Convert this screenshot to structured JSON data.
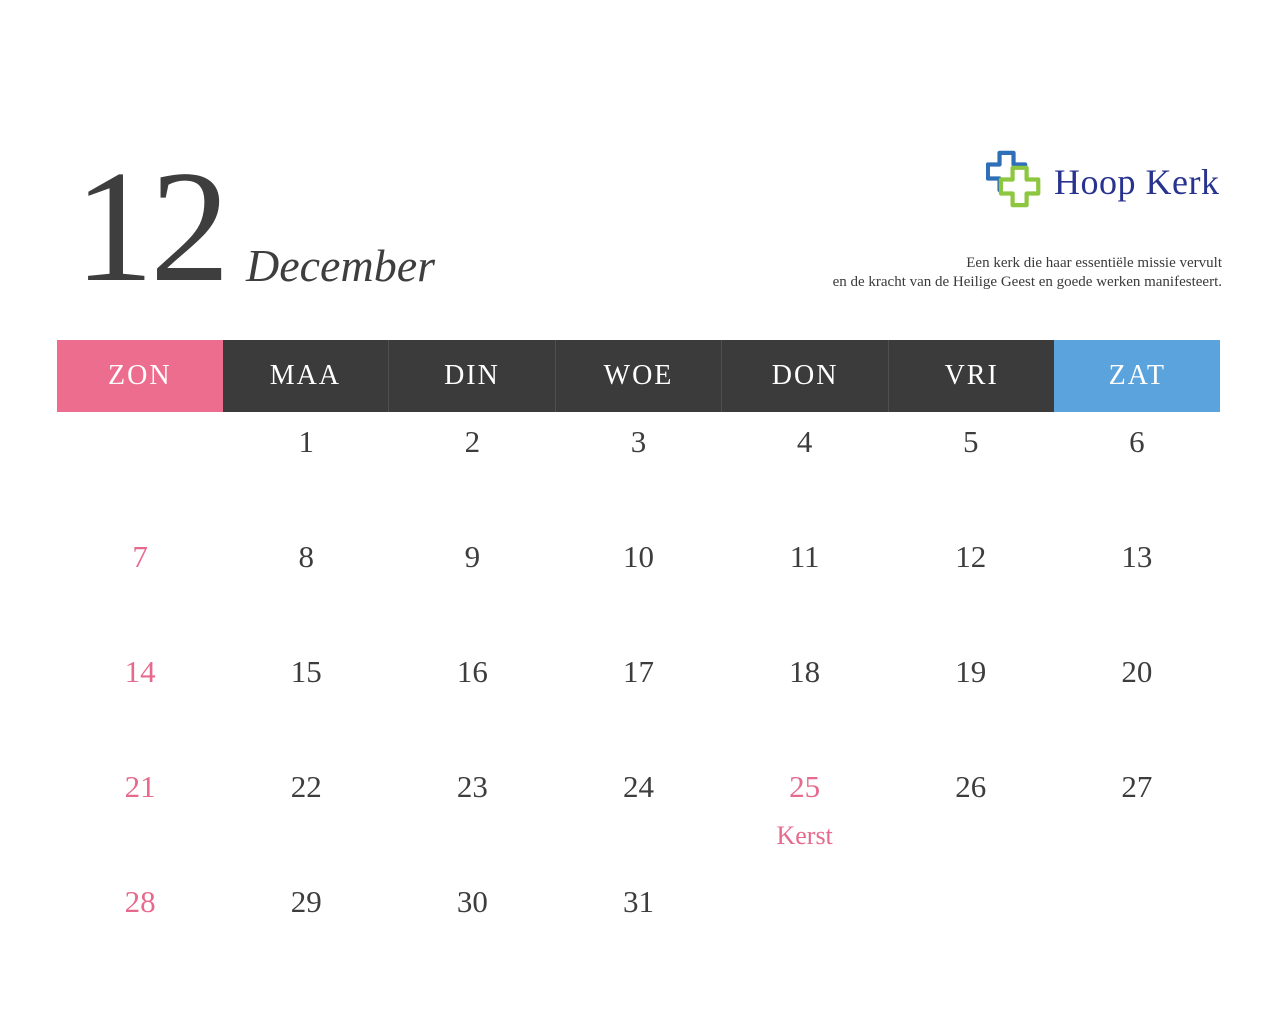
{
  "month": {
    "number": "12",
    "name": "December"
  },
  "brand": {
    "name": "Hoop Kerk",
    "tagline_lines": [
      "Een kerk die haar essentiële missie vervult",
      "en de kracht van de Heilige Geest en goede werken manifesteert."
    ],
    "colors": {
      "text": "#283390",
      "cross_blue": "#2e6fb7",
      "cross_green": "#8dc63f"
    }
  },
  "calendar": {
    "weekday_text_color": "#ffffff",
    "weekdays": [
      {
        "label": "ZON",
        "bg": "#ec6d8e"
      },
      {
        "label": "MAA",
        "bg": "#3b3b3b"
      },
      {
        "label": "DIN",
        "bg": "#3b3b3b"
      },
      {
        "label": "WOE",
        "bg": "#3b3b3b"
      },
      {
        "label": "DON",
        "bg": "#3b3b3b"
      },
      {
        "label": "VRI",
        "bg": "#3b3b3b"
      },
      {
        "label": "ZAT",
        "bg": "#5ba3dc"
      }
    ],
    "day_color_default": "#3d3d3d",
    "day_color_accent": "#e76a8e",
    "weeks": [
      [
        {
          "day": ""
        },
        {
          "day": "1"
        },
        {
          "day": "2"
        },
        {
          "day": "3"
        },
        {
          "day": "4"
        },
        {
          "day": "5"
        },
        {
          "day": "6"
        }
      ],
      [
        {
          "day": "7",
          "accent": true
        },
        {
          "day": "8"
        },
        {
          "day": "9"
        },
        {
          "day": "10"
        },
        {
          "day": "11"
        },
        {
          "day": "12"
        },
        {
          "day": "13"
        }
      ],
      [
        {
          "day": "14",
          "accent": true
        },
        {
          "day": "15"
        },
        {
          "day": "16"
        },
        {
          "day": "17"
        },
        {
          "day": "18"
        },
        {
          "day": "19"
        },
        {
          "day": "20"
        }
      ],
      [
        {
          "day": "21",
          "accent": true
        },
        {
          "day": "22"
        },
        {
          "day": "23"
        },
        {
          "day": "24"
        },
        {
          "day": "25",
          "accent": true,
          "note": "Kerst"
        },
        {
          "day": "26"
        },
        {
          "day": "27"
        }
      ],
      [
        {
          "day": "28",
          "accent": true
        },
        {
          "day": "29"
        },
        {
          "day": "30"
        },
        {
          "day": "31"
        },
        {
          "day": ""
        },
        {
          "day": ""
        },
        {
          "day": ""
        }
      ]
    ]
  }
}
